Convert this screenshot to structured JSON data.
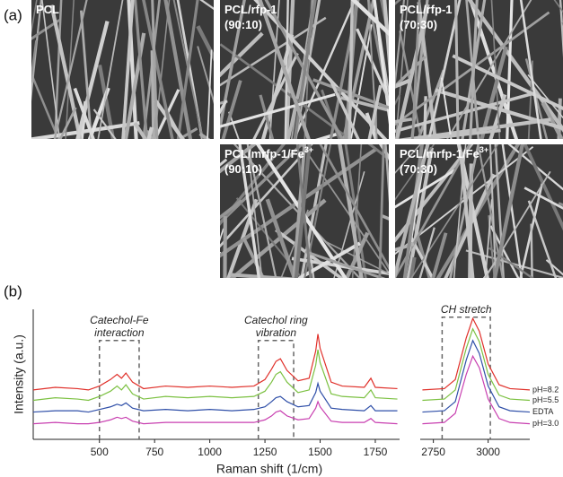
{
  "panels": {
    "a": {
      "label": "(a)",
      "images": [
        {
          "lines": [
            "PCL"
          ]
        },
        {
          "lines": [
            "PCL/rfp-1",
            "(90:10)"
          ]
        },
        {
          "lines": [
            "PCL/rfp-1",
            "(70:30)"
          ]
        },
        {
          "lines": [
            "PCL/mrfp-1/Fe",
            "(90:10)"
          ],
          "sup": "3+"
        },
        {
          "lines": [
            "PCL/mrfp-1/Fe",
            "(70:30)"
          ],
          "sup": "3+"
        }
      ]
    },
    "b": {
      "label": "(b)"
    }
  },
  "chart_data": {
    "type": "line",
    "xlabel": "Raman shift (1/cm)",
    "ylabel": "Intensity (a.u.)",
    "x": [
      200,
      300,
      400,
      450,
      500,
      550,
      580,
      600,
      620,
      650,
      700,
      800,
      900,
      1000,
      1100,
      1200,
      1250,
      1280,
      1300,
      1320,
      1350,
      1400,
      1450,
      1480,
      1490,
      1500,
      1550,
      1600,
      1700,
      1730,
      1750,
      1850,
      2200,
      2700,
      2800,
      2850,
      2900,
      2930,
      2960,
      3000,
      3050,
      3100,
      3190
    ],
    "xlim": [
      200,
      3190
    ],
    "xbreak": [
      1860,
      2690
    ],
    "xticks": [
      500,
      750,
      1000,
      1250,
      1500,
      1750,
      2750,
      3000
    ],
    "ylim": [
      0,
      10
    ],
    "series": [
      {
        "name": "pH=8.2",
        "color": "#e0302a",
        "values": [
          3.8,
          4.0,
          3.9,
          3.8,
          4.1,
          4.6,
          5.0,
          4.7,
          5.1,
          4.4,
          3.9,
          4.1,
          4.0,
          4.1,
          4.0,
          4.1,
          4.6,
          5.4,
          6.0,
          6.2,
          5.3,
          4.5,
          4.7,
          6.8,
          8.1,
          7.0,
          4.4,
          4.1,
          4.0,
          4.7,
          4.0,
          3.9,
          null,
          3.8,
          3.9,
          4.6,
          7.8,
          9.3,
          8.3,
          5.8,
          4.2,
          3.9,
          3.8
        ]
      },
      {
        "name": "pH=5.5",
        "color": "#7cc142",
        "values": [
          3.0,
          3.2,
          3.1,
          3.0,
          3.3,
          3.7,
          4.1,
          3.8,
          4.2,
          3.5,
          3.1,
          3.3,
          3.2,
          3.3,
          3.2,
          3.3,
          3.7,
          4.4,
          5.0,
          5.2,
          4.4,
          3.6,
          3.8,
          5.7,
          6.9,
          5.9,
          3.5,
          3.3,
          3.2,
          3.8,
          3.2,
          3.1,
          null,
          3.0,
          3.1,
          3.8,
          7.0,
          8.5,
          7.5,
          5.0,
          3.4,
          3.1,
          3.0
        ]
      },
      {
        "name": "EDTA",
        "color": "#2f4fa8",
        "values": [
          2.1,
          2.2,
          2.2,
          2.1,
          2.3,
          2.5,
          2.7,
          2.6,
          2.8,
          2.4,
          2.2,
          2.3,
          2.2,
          2.3,
          2.2,
          2.3,
          2.5,
          2.9,
          3.2,
          3.3,
          2.9,
          2.5,
          2.6,
          3.6,
          4.3,
          3.7,
          2.4,
          2.3,
          2.2,
          2.6,
          2.2,
          2.2,
          null,
          2.1,
          2.2,
          2.9,
          6.1,
          7.6,
          6.6,
          4.1,
          2.5,
          2.2,
          2.1
        ]
      },
      {
        "name": "pH=3.0",
        "color": "#c83fb0",
        "values": [
          1.2,
          1.3,
          1.2,
          1.2,
          1.3,
          1.5,
          1.7,
          1.6,
          1.7,
          1.4,
          1.2,
          1.3,
          1.3,
          1.3,
          1.3,
          1.3,
          1.5,
          1.8,
          2.1,
          2.2,
          1.8,
          1.5,
          1.6,
          2.4,
          2.9,
          2.5,
          1.4,
          1.3,
          1.3,
          1.6,
          1.3,
          1.2,
          null,
          1.2,
          1.3,
          2.0,
          5.0,
          6.4,
          5.5,
          3.1,
          1.6,
          1.3,
          1.2
        ]
      }
    ],
    "annotations": [
      {
        "text": [
          "Catechol-Fe",
          "interaction"
        ],
        "xrange": [
          500,
          680
        ],
        "top": 7.6
      },
      {
        "text": [
          "Catechol ring",
          "vibration"
        ],
        "xrange": [
          1220,
          1380
        ],
        "top": 7.6
      },
      {
        "text": [
          "CH stretch"
        ],
        "xrange": [
          2790,
          3010
        ],
        "top": 9.4
      }
    ]
  }
}
